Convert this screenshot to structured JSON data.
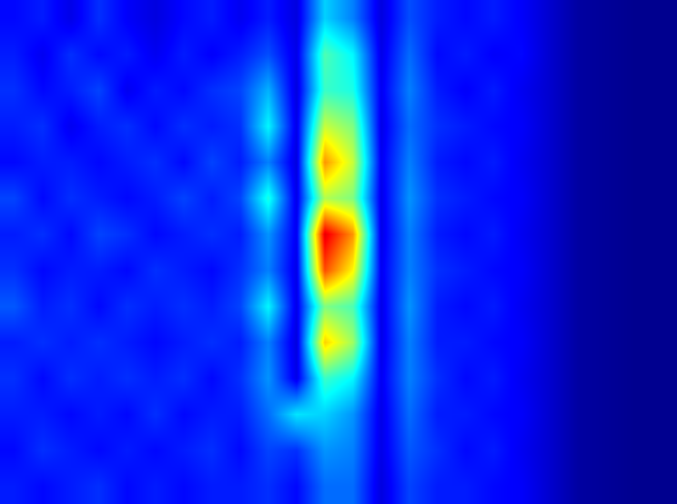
{
  "chart_data": {
    "type": "heatmap",
    "tick_labels": false,
    "zlim": [
      0.05,
      1.05
    ],
    "z": [
      [
        0.18,
        0.2,
        0.15,
        0.22,
        0.17,
        0.14,
        0.18,
        0.2,
        0.16,
        0.2,
        0.14,
        0.38,
        0.3,
        0.14,
        0.25,
        0.2,
        0.18,
        0.2,
        0.17,
        0.12,
        0.07,
        0.06,
        0.05,
        0.05
      ],
      [
        0.2,
        0.16,
        0.22,
        0.18,
        0.2,
        0.16,
        0.2,
        0.17,
        0.2,
        0.25,
        0.15,
        0.5,
        0.42,
        0.15,
        0.28,
        0.18,
        0.2,
        0.17,
        0.18,
        0.12,
        0.07,
        0.06,
        0.05,
        0.05
      ],
      [
        0.22,
        0.18,
        0.2,
        0.24,
        0.16,
        0.2,
        0.18,
        0.22,
        0.24,
        0.35,
        0.14,
        0.48,
        0.45,
        0.16,
        0.3,
        0.2,
        0.17,
        0.2,
        0.16,
        0.12,
        0.07,
        0.06,
        0.05,
        0.05
      ],
      [
        0.2,
        0.22,
        0.16,
        0.2,
        0.22,
        0.18,
        0.22,
        0.2,
        0.22,
        0.42,
        0.15,
        0.62,
        0.55,
        0.15,
        0.28,
        0.22,
        0.2,
        0.18,
        0.17,
        0.12,
        0.07,
        0.06,
        0.05,
        0.05
      ],
      [
        0.18,
        0.2,
        0.2,
        0.18,
        0.2,
        0.22,
        0.18,
        0.24,
        0.2,
        0.3,
        0.14,
        0.78,
        0.62,
        0.16,
        0.3,
        0.2,
        0.18,
        0.2,
        0.16,
        0.12,
        0.07,
        0.06,
        0.05,
        0.05
      ],
      [
        0.24,
        0.18,
        0.22,
        0.2,
        0.18,
        0.2,
        0.24,
        0.2,
        0.24,
        0.45,
        0.15,
        0.6,
        0.55,
        0.15,
        0.32,
        0.22,
        0.2,
        0.18,
        0.17,
        0.12,
        0.07,
        0.06,
        0.05,
        0.05
      ],
      [
        0.2,
        0.22,
        0.18,
        0.24,
        0.22,
        0.18,
        0.2,
        0.22,
        0.2,
        0.32,
        0.16,
        0.95,
        0.78,
        0.15,
        0.3,
        0.2,
        0.18,
        0.2,
        0.16,
        0.12,
        0.07,
        0.06,
        0.05,
        0.05
      ],
      [
        0.22,
        0.18,
        0.2,
        0.2,
        0.18,
        0.22,
        0.2,
        0.18,
        0.22,
        0.3,
        0.15,
        0.85,
        0.68,
        0.16,
        0.3,
        0.22,
        0.2,
        0.18,
        0.17,
        0.12,
        0.07,
        0.06,
        0.05,
        0.05
      ],
      [
        0.26,
        0.2,
        0.22,
        0.18,
        0.22,
        0.2,
        0.22,
        0.2,
        0.24,
        0.42,
        0.15,
        0.55,
        0.5,
        0.15,
        0.32,
        0.2,
        0.18,
        0.2,
        0.16,
        0.12,
        0.07,
        0.06,
        0.05,
        0.05
      ],
      [
        0.2,
        0.22,
        0.2,
        0.22,
        0.2,
        0.18,
        0.2,
        0.22,
        0.2,
        0.3,
        0.14,
        0.72,
        0.58,
        0.15,
        0.3,
        0.2,
        0.2,
        0.18,
        0.17,
        0.12,
        0.07,
        0.06,
        0.05,
        0.05
      ],
      [
        0.22,
        0.18,
        0.22,
        0.2,
        0.22,
        0.2,
        0.22,
        0.18,
        0.22,
        0.32,
        0.15,
        0.48,
        0.42,
        0.16,
        0.3,
        0.22,
        0.18,
        0.2,
        0.16,
        0.12,
        0.07,
        0.06,
        0.05,
        0.05
      ],
      [
        0.2,
        0.2,
        0.18,
        0.2,
        0.18,
        0.22,
        0.18,
        0.2,
        0.2,
        0.28,
        0.4,
        0.38,
        0.32,
        0.15,
        0.28,
        0.2,
        0.2,
        0.18,
        0.17,
        0.12,
        0.07,
        0.06,
        0.05,
        0.05
      ],
      [
        0.18,
        0.22,
        0.2,
        0.18,
        0.2,
        0.18,
        0.2,
        0.22,
        0.18,
        0.24,
        0.22,
        0.32,
        0.3,
        0.15,
        0.26,
        0.22,
        0.18,
        0.2,
        0.16,
        0.12,
        0.07,
        0.06,
        0.05,
        0.05
      ],
      [
        0.2,
        0.18,
        0.2,
        0.22,
        0.18,
        0.2,
        0.18,
        0.2,
        0.2,
        0.22,
        0.18,
        0.28,
        0.28,
        0.14,
        0.24,
        0.2,
        0.2,
        0.18,
        0.17,
        0.12,
        0.07,
        0.06,
        0.05,
        0.05
      ]
    ]
  }
}
